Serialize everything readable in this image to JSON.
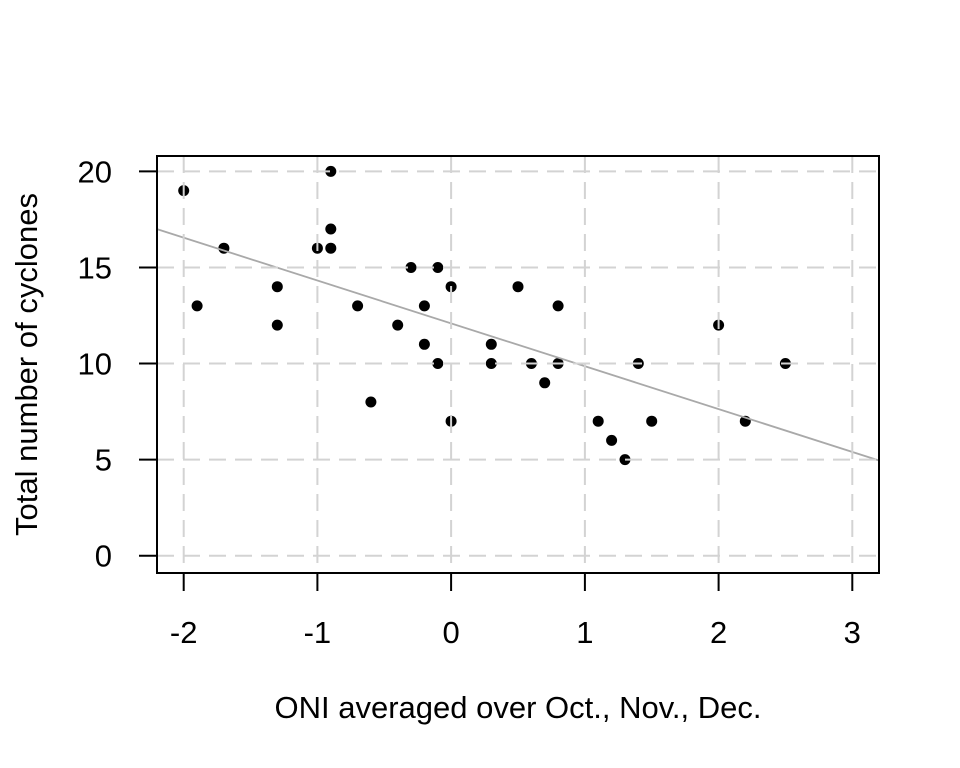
{
  "page": {
    "background": "#ffffff"
  },
  "chart_data": {
    "type": "scatter",
    "title": "",
    "xlabel": "ONI averaged over Oct., Nov., Dec.",
    "ylabel": "Total number of cyclones",
    "xlim": [
      -2.2,
      3.2
    ],
    "ylim": [
      -0.9,
      20.8
    ],
    "x_ticks": [
      -2,
      -1,
      0,
      1,
      2,
      3
    ],
    "y_ticks": [
      0,
      5,
      10,
      15,
      20
    ],
    "grid": true,
    "legend_position": "none",
    "points": [
      [
        -2.0,
        19
      ],
      [
        -1.9,
        13
      ],
      [
        -1.7,
        16
      ],
      [
        -1.3,
        14
      ],
      [
        -1.3,
        12
      ],
      [
        -1.0,
        16
      ],
      [
        -0.9,
        20
      ],
      [
        -0.9,
        17
      ],
      [
        -0.9,
        16
      ],
      [
        -0.7,
        13
      ],
      [
        -0.6,
        8
      ],
      [
        -0.4,
        12
      ],
      [
        -0.3,
        15
      ],
      [
        -0.2,
        13
      ],
      [
        -0.2,
        11
      ],
      [
        -0.1,
        15
      ],
      [
        -0.1,
        10
      ],
      [
        0.0,
        14
      ],
      [
        0.0,
        7
      ],
      [
        0.3,
        11
      ],
      [
        0.3,
        10
      ],
      [
        0.5,
        14
      ],
      [
        0.6,
        10
      ],
      [
        0.7,
        9
      ],
      [
        0.8,
        13
      ],
      [
        0.8,
        10
      ],
      [
        1.1,
        7
      ],
      [
        1.2,
        6
      ],
      [
        1.3,
        5
      ],
      [
        1.4,
        10
      ],
      [
        1.5,
        7
      ],
      [
        2.0,
        12
      ],
      [
        2.2,
        7
      ],
      [
        2.5,
        10
      ]
    ],
    "regression_line": {
      "slope": -2.23,
      "intercept": 12.09
    },
    "colors": {
      "point": "#000000",
      "regression": "#a9a9a9",
      "grid": "#d3d3d3",
      "axis": "#000000"
    }
  }
}
